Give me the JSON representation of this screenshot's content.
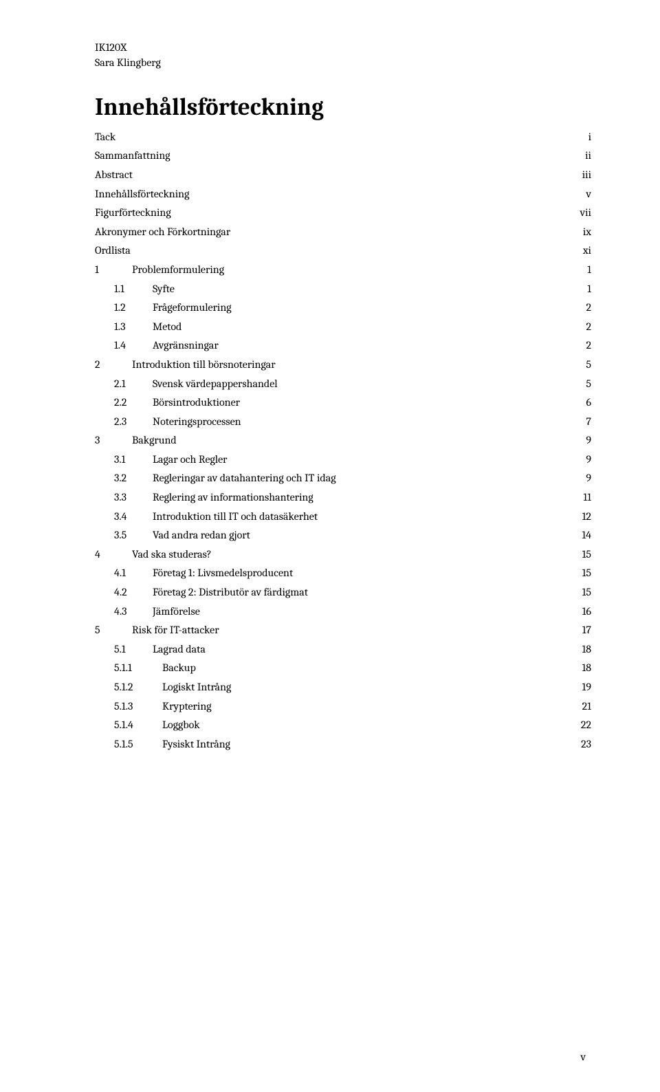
{
  "header": {
    "course_code": "IK120X",
    "author": "Sara Klingberg"
  },
  "title": "Innehållsförteckning",
  "toc": [
    {
      "label": "Tack",
      "page": "i",
      "indent": 0,
      "num": "",
      "sparse": true
    },
    {
      "label": "Sammanfattning",
      "page": "ii",
      "indent": 0,
      "num": "",
      "sparse": true
    },
    {
      "label": "Abstract",
      "page": "iii",
      "indent": 0,
      "num": "",
      "sparse": false
    },
    {
      "label": "Innehållsförteckning",
      "page": "v",
      "indent": 0,
      "num": "",
      "sparse": true
    },
    {
      "label": "Figurförteckning",
      "page": "vii",
      "indent": 0,
      "num": "",
      "sparse": false
    },
    {
      "label": "Akronymer och Förkortningar",
      "page": "ix",
      "indent": 0,
      "num": "",
      "sparse": true
    },
    {
      "label": "Ordlista",
      "page": "xi",
      "indent": 0,
      "num": "",
      "sparse": true
    },
    {
      "label": "Problemformulering",
      "page": "1",
      "indent": 0,
      "num": "1",
      "sparse": true
    },
    {
      "label": "Syfte",
      "page": "1",
      "indent": 1,
      "num": "1.1",
      "sparse": true
    },
    {
      "label": "Frågeformulering",
      "page": "2",
      "indent": 1,
      "num": "1.2",
      "sparse": true
    },
    {
      "label": "Metod",
      "page": "2",
      "indent": 1,
      "num": "1.3",
      "sparse": true
    },
    {
      "label": "Avgränsningar",
      "page": "2",
      "indent": 1,
      "num": "1.4",
      "sparse": true
    },
    {
      "label": "Introduktion till börsnoteringar",
      "page": "5",
      "indent": 0,
      "num": "2",
      "sparse": true
    },
    {
      "label": "Svensk värdepappershandel",
      "page": "5",
      "indent": 1,
      "num": "2.1",
      "sparse": true
    },
    {
      "label": "Börsintroduktioner",
      "page": "6",
      "indent": 1,
      "num": "2.2",
      "sparse": true
    },
    {
      "label": "Noteringsprocessen",
      "page": "7",
      "indent": 1,
      "num": "2.3",
      "sparse": true
    },
    {
      "label": "Bakgrund",
      "page": "9",
      "indent": 0,
      "num": "3",
      "sparse": true
    },
    {
      "label": "Lagar och Regler",
      "page": "9",
      "indent": 1,
      "num": "3.1",
      "sparse": true
    },
    {
      "label": "Regleringar av datahantering och IT idag",
      "page": "9",
      "indent": 1,
      "num": "3.2",
      "sparse": true
    },
    {
      "label": "Reglering av informationshantering",
      "page": "11",
      "indent": 1,
      "num": "3.3",
      "sparse": false
    },
    {
      "label": "Introduktion till IT och datasäkerhet",
      "page": "12",
      "indent": 1,
      "num": "3.4",
      "sparse": false
    },
    {
      "label": "Vad andra redan gjort",
      "page": "14",
      "indent": 1,
      "num": "3.5",
      "sparse": false
    },
    {
      "label": "Vad ska studeras?",
      "page": "15",
      "indent": 0,
      "num": "4",
      "sparse": false
    },
    {
      "label": "Företag 1: Livsmedelsproducent",
      "page": "15",
      "indent": 1,
      "num": "4.1",
      "sparse": false
    },
    {
      "label": "Företag 2: Distributör av färdigmat",
      "page": "15",
      "indent": 1,
      "num": "4.2",
      "sparse": false
    },
    {
      "label": "Jämförelse",
      "page": "16",
      "indent": 1,
      "num": "4.3",
      "sparse": false
    },
    {
      "label": "Risk för IT-attacker",
      "page": "17",
      "indent": 0,
      "num": "5",
      "sparse": false
    },
    {
      "label": "Lagrad data",
      "page": "18",
      "indent": 1,
      "num": "5.1",
      "sparse": false
    },
    {
      "label": "Backup",
      "page": "18",
      "indent": 2,
      "num": "5.1.1",
      "sparse": false
    },
    {
      "label": "Logiskt Intrång",
      "page": "19",
      "indent": 2,
      "num": "5.1.2",
      "sparse": false
    },
    {
      "label": "Kryptering",
      "page": "21",
      "indent": 2,
      "num": "5.1.3",
      "sparse": false
    },
    {
      "label": "Loggbok",
      "page": "22",
      "indent": 2,
      "num": "5.1.4",
      "sparse": false
    },
    {
      "label": "Fysiskt Intrång",
      "page": "23",
      "indent": 2,
      "num": "5.1.5",
      "sparse": false
    }
  ],
  "footer_page": "v"
}
